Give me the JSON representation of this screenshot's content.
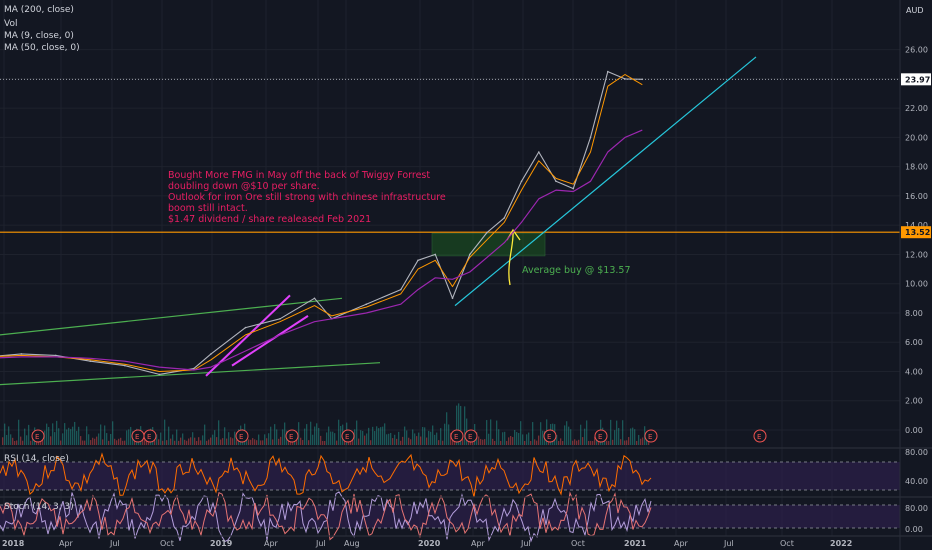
{
  "indicators": {
    "ma200": "MA (200, close)",
    "vol": "Vol",
    "ma9": "MA (9, close, 0)",
    "ma50": "MA (50, close, 0)",
    "rsi": "RSI (14, close)",
    "stoch": "Stoch (14, 3, 3)"
  },
  "currency": "AUD",
  "price_labels": {
    "last": "23.97",
    "line": "13.52"
  },
  "annotation": {
    "lines": [
      "Bought More FMG in May off the back of Twiggy Forrest",
      "doubling down @$10 per share.",
      "Outlook for iron Ore still strong with chinese infrastructure",
      "boom still intact.",
      "$1.47 dividend / share realeased Feb 2021"
    ],
    "avg_buy": "Average buy @ $13.57"
  },
  "earnings_marker": "E",
  "colors": {
    "background": "#131722",
    "price": "#b2b5be",
    "ma9": "#ff9800",
    "ma50": "#9c27b0",
    "hline": "#ff9800",
    "annotation": "#e91e63",
    "avg_buy": "#4caf50",
    "trend_cyan": "#26c6da",
    "channel_green": "#4caf50",
    "channel_magenta": "#e040fb",
    "rsi": "#ff6d00",
    "stoch": "#b39ddb"
  },
  "chart_data": {
    "type": "line",
    "title": "",
    "x_ticks": [
      "2018",
      "Apr",
      "Jul",
      "Oct",
      "2019",
      "Apr",
      "Jul",
      "Aug",
      "2020",
      "Apr",
      "Jul",
      "Oct",
      "2021",
      "Apr",
      "Jul",
      "Oct",
      "2022"
    ],
    "y_ticks": [
      "26.00",
      "24.00",
      "22.00",
      "20.00",
      "18.00",
      "16.00",
      "14.00",
      "12.00",
      "10.00",
      "8.00",
      "6.00",
      "4.00",
      "2.00",
      "0.00"
    ],
    "ylim": [
      0,
      27
    ],
    "x": [
      "2017-12",
      "2018-02",
      "2018-04",
      "2018-06",
      "2018-08",
      "2018-10",
      "2018-12",
      "2019-01",
      "2019-03",
      "2019-05",
      "2019-07",
      "2019-08",
      "2019-10",
      "2019-12",
      "2020-01",
      "2020-02",
      "2020-03",
      "2020-04",
      "2020-05",
      "2020-06",
      "2020-07",
      "2020-08",
      "2020-09",
      "2020-10",
      "2020-11",
      "2020-12",
      "2021-01",
      "2021-02"
    ],
    "series": [
      {
        "values": [
          5.0,
          5.2,
          5.1,
          4.7,
          4.4,
          3.8,
          4.2,
          5.2,
          7.0,
          7.6,
          9.0,
          7.6,
          8.6,
          9.6,
          11.6,
          12.0,
          9.0,
          12.0,
          13.5,
          14.5,
          17.0,
          19.0,
          17.0,
          16.5,
          20.0,
          24.5,
          24.0,
          23.97
        ]
      },
      {
        "values": [
          5.0,
          5.1,
          5.0,
          4.8,
          4.5,
          4.0,
          4.1,
          4.8,
          6.5,
          7.4,
          8.5,
          7.8,
          8.4,
          9.3,
          11.0,
          11.6,
          9.8,
          11.8,
          13.0,
          14.2,
          16.4,
          18.4,
          17.2,
          16.8,
          19.0,
          23.5,
          24.3,
          23.6
        ]
      },
      {
        "values": [
          4.9,
          5.0,
          5.0,
          4.9,
          4.7,
          4.3,
          4.1,
          4.3,
          5.4,
          6.5,
          7.4,
          7.6,
          8.0,
          8.6,
          9.6,
          10.4,
          10.3,
          10.8,
          11.8,
          12.8,
          14.2,
          15.8,
          16.4,
          16.3,
          17.0,
          19.0,
          20.0,
          20.5
        ]
      }
    ],
    "hline": 13.52,
    "last": 23.97,
    "rsi_ticks": [
      "80.00",
      "40.00"
    ],
    "stoch_ticks": [
      "80.00",
      "0.00"
    ],
    "grid": true
  }
}
